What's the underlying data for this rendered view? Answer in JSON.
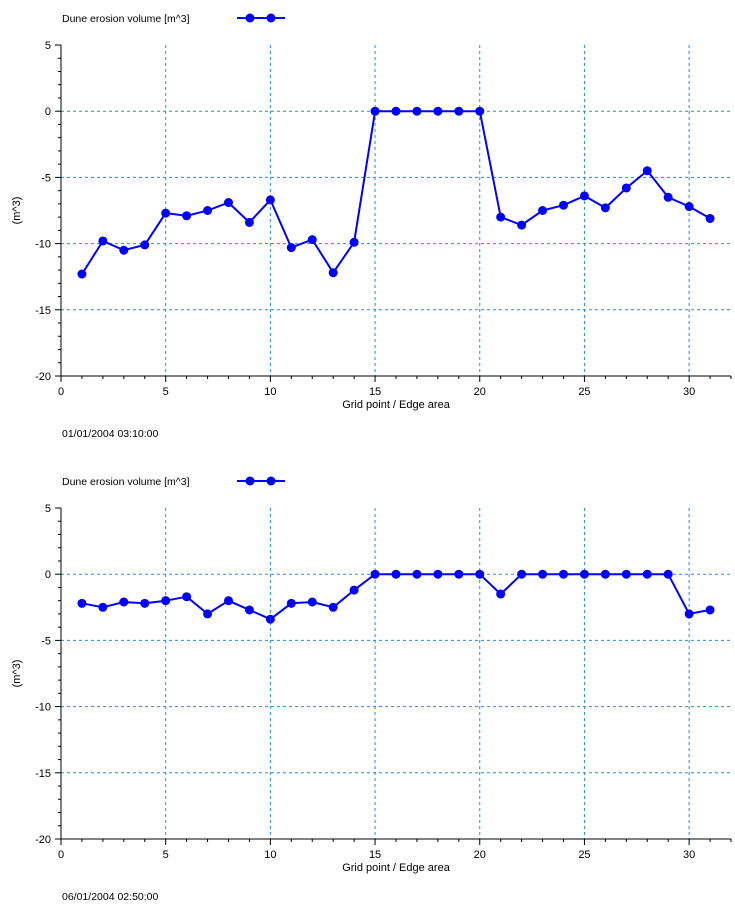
{
  "colors": {
    "series": "#0000ff",
    "grid": "#1e8fe0",
    "axis": "#000000",
    "text": "#000000",
    "background": "#ffffff"
  },
  "chart_data": [
    {
      "type": "line",
      "legend": {
        "label": "Dune erosion volume [m^3]",
        "position": "top-left"
      },
      "series": [
        {
          "name": "Dune erosion volume [m^3]",
          "x": [
            1,
            2,
            3,
            4,
            5,
            6,
            7,
            8,
            9,
            10,
            11,
            12,
            13,
            14,
            15,
            16,
            17,
            18,
            19,
            20,
            21,
            22,
            23,
            24,
            25,
            26,
            27,
            28,
            29,
            30,
            31
          ],
          "values": [
            -12.3,
            -9.8,
            -10.5,
            -10.1,
            -7.7,
            -7.9,
            -7.5,
            -6.9,
            -8.4,
            -6.7,
            -10.3,
            -9.7,
            -12.2,
            -9.9,
            0,
            0,
            0,
            0,
            0,
            0,
            -8.0,
            -8.6,
            -7.5,
            -7.1,
            -6.4,
            -7.3,
            -5.8,
            -4.5,
            -6.5,
            -7.2,
            -8.1
          ]
        }
      ],
      "xlabel": "Grid point / Edge area",
      "ylabel": "(m^3)",
      "xlim": [
        0,
        32
      ],
      "ylim": [
        -20,
        5
      ],
      "xticks": [
        0,
        5,
        10,
        15,
        20,
        25,
        30
      ],
      "xtick_labels": [
        "0",
        "5",
        "10",
        "15",
        "20",
        "25",
        "30"
      ],
      "yticks": [
        5,
        0,
        -5,
        -10,
        -15,
        -20
      ],
      "ytick_labels": [
        "5",
        "0",
        "-5",
        "-10",
        "-15",
        "-20"
      ],
      "grid": true,
      "timestamp": "01/01/2004 03:10:00"
    },
    {
      "type": "line",
      "legend": {
        "label": "Dune erosion volume [m^3]",
        "position": "top-left"
      },
      "series": [
        {
          "name": "Dune erosion volume [m^3]",
          "x": [
            1,
            2,
            3,
            4,
            5,
            6,
            7,
            8,
            9,
            10,
            11,
            12,
            13,
            14,
            15,
            16,
            17,
            18,
            19,
            20,
            21,
            22,
            23,
            24,
            25,
            26,
            27,
            28,
            29,
            30,
            31
          ],
          "values": [
            -2.2,
            -2.5,
            -2.1,
            -2.2,
            -2.0,
            -1.7,
            -3.0,
            -2.0,
            -2.7,
            -3.4,
            -2.2,
            -2.1,
            -2.5,
            -1.2,
            0,
            0,
            0,
            0,
            0,
            0,
            -1.5,
            0,
            0,
            0,
            0,
            0,
            0,
            0,
            0,
            -3.0,
            -2.7
          ]
        }
      ],
      "xlabel": "Grid point / Edge area",
      "ylabel": "(m^3)",
      "xlim": [
        0,
        32
      ],
      "ylim": [
        -20,
        5
      ],
      "xticks": [
        0,
        5,
        10,
        15,
        20,
        25,
        30
      ],
      "xtick_labels": [
        "0",
        "5",
        "10",
        "15",
        "20",
        "25",
        "30"
      ],
      "yticks": [
        5,
        0,
        -5,
        -10,
        -15,
        -20
      ],
      "ytick_labels": [
        "5",
        "0",
        "-5",
        "-10",
        "-15",
        "-20"
      ],
      "grid": true,
      "timestamp": "06/01/2004 02:50:00"
    }
  ]
}
